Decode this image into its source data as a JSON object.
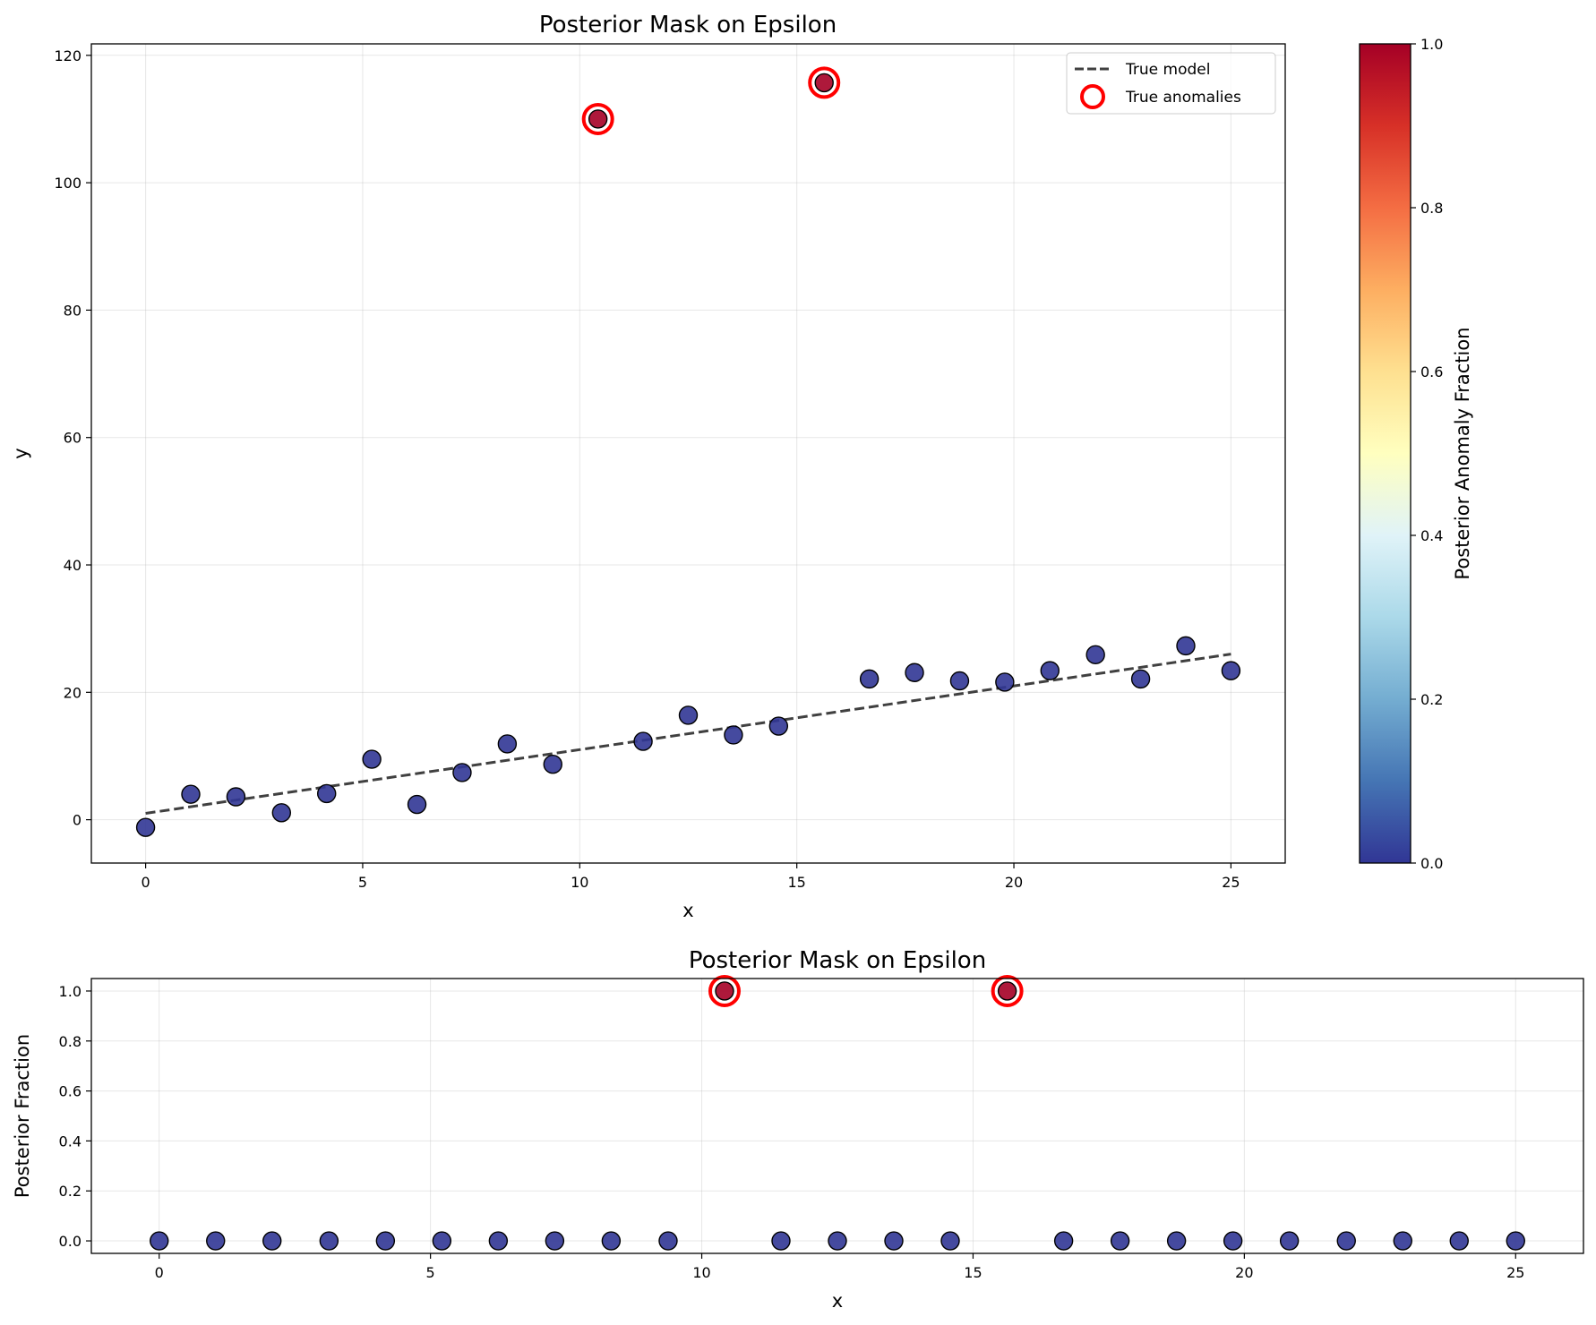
{
  "chart_data": [
    {
      "type": "scatter",
      "title": "Posterior Mask on Epsilon",
      "xlabel": "x",
      "ylabel": "y",
      "xlim": [
        -1.25,
        26.25
      ],
      "ylim": [
        -6.8,
        121.8
      ],
      "xticks": [
        0,
        5,
        10,
        15,
        20,
        25
      ],
      "yticks": [
        0,
        20,
        40,
        60,
        80,
        100,
        120
      ],
      "grid": true,
      "legend_position": "top-right",
      "legend": [
        "True model",
        "True anomalies"
      ],
      "true_model": {
        "name": "True model",
        "x": [
          0,
          25
        ],
        "y": [
          1.0,
          26.0
        ]
      },
      "x": [
        0.0,
        1.04,
        2.08,
        3.13,
        4.17,
        5.21,
        6.25,
        7.29,
        8.33,
        9.38,
        10.42,
        11.46,
        12.5,
        13.54,
        14.58,
        15.63,
        16.67,
        17.71,
        18.75,
        19.79,
        20.83,
        21.88,
        22.92,
        23.96,
        25.0
      ],
      "y": [
        -1.2,
        4.0,
        3.6,
        1.1,
        4.1,
        9.5,
        2.4,
        7.4,
        11.9,
        8.7,
        110.0,
        12.3,
        16.4,
        13.3,
        14.7,
        115.7,
        22.1,
        23.1,
        21.8,
        21.6,
        23.4,
        25.9,
        22.1,
        27.3,
        23.4
      ],
      "posterior_fraction": [
        0,
        0,
        0,
        0,
        0,
        0,
        0,
        0,
        0,
        0,
        1,
        0,
        0,
        0,
        0,
        1,
        0,
        0,
        0,
        0,
        0,
        0,
        0,
        0,
        0
      ],
      "true_anomaly_index": [
        10,
        15
      ],
      "colors": {
        "low": "#313695",
        "high": "#a50026",
        "anomaly_ring": "#ff0000",
        "model_line": "#404040"
      },
      "colorbar": {
        "label": "Posterior Anomaly Fraction",
        "ticks": [
          0.0,
          0.2,
          0.4,
          0.6,
          0.8,
          1.0
        ],
        "tick_labels": [
          "0.0",
          "0.2",
          "0.4",
          "0.6",
          "0.8",
          "1.0"
        ],
        "colormap": "RdYlBu_r"
      }
    },
    {
      "type": "scatter",
      "title": "Posterior Mask on Epsilon",
      "xlabel": "x",
      "ylabel": "Posterior Fraction",
      "xlim": [
        -1.25,
        26.25
      ],
      "ylim": [
        -0.05,
        1.05
      ],
      "xticks": [
        0,
        5,
        10,
        15,
        20,
        25
      ],
      "yticks": [
        0.0,
        0.2,
        0.4,
        0.6,
        0.8,
        1.0
      ],
      "ytick_labels": [
        "0.0",
        "0.2",
        "0.4",
        "0.6",
        "0.8",
        "1.0"
      ],
      "grid": true,
      "x": [
        0.0,
        1.04,
        2.08,
        3.13,
        4.17,
        5.21,
        6.25,
        7.29,
        8.33,
        9.38,
        10.42,
        11.46,
        12.5,
        13.54,
        14.58,
        15.63,
        16.67,
        17.71,
        18.75,
        19.79,
        20.83,
        21.88,
        22.92,
        23.96,
        25.0
      ],
      "y": [
        0,
        0,
        0,
        0,
        0,
        0,
        0,
        0,
        0,
        0,
        1,
        0,
        0,
        0,
        0,
        1,
        0,
        0,
        0,
        0,
        0,
        0,
        0,
        0,
        0
      ],
      "true_anomaly_index": [
        10,
        15
      ]
    }
  ]
}
